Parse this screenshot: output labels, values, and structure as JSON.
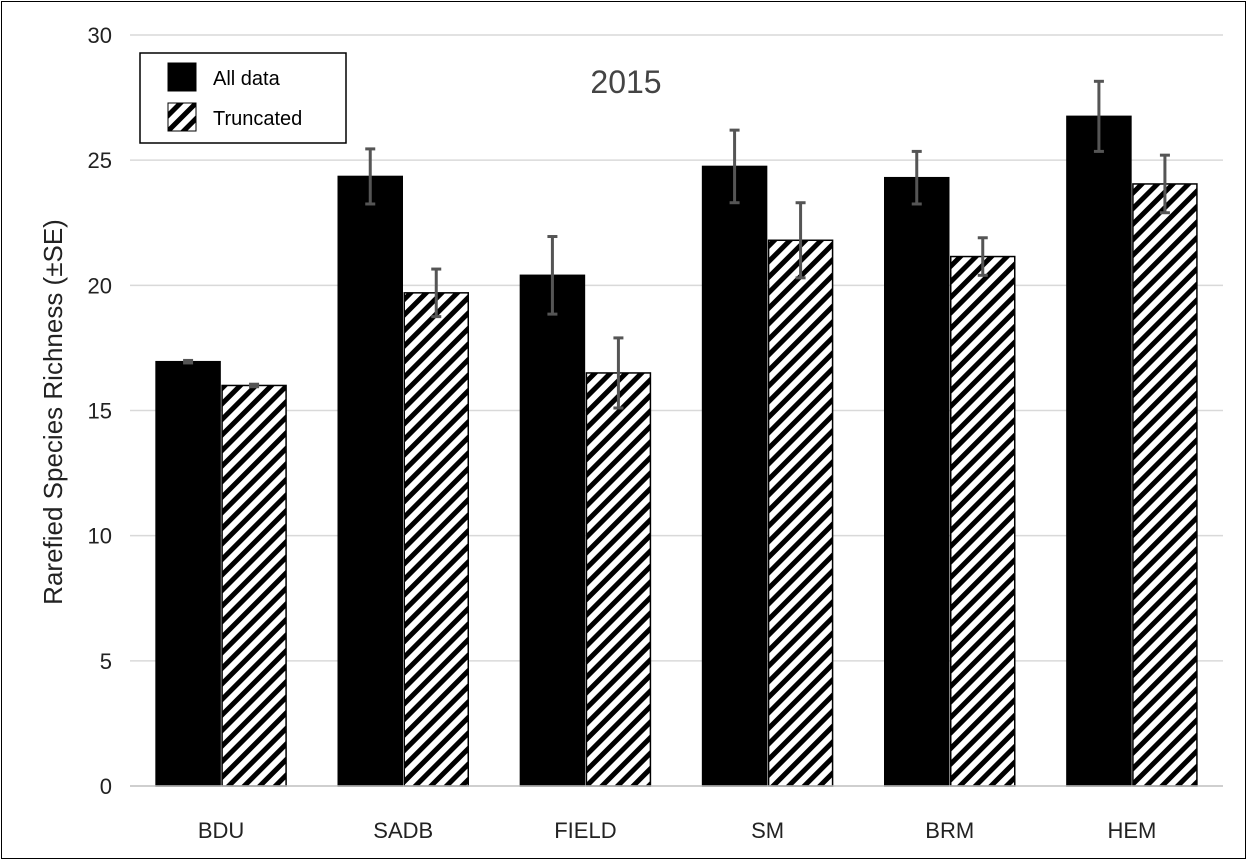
{
  "chart_data": {
    "type": "bar",
    "title": "2015",
    "xlabel": "",
    "ylabel": "Rarefied Species Richness (±SE)",
    "categories": [
      "BDU",
      "SADB",
      "FIELD",
      "SM",
      "BRM",
      "HEM"
    ],
    "series": [
      {
        "name": "All data",
        "fill": "solid",
        "color": "#000000",
        "values": [
          16.95,
          24.35,
          20.4,
          24.75,
          24.3,
          26.75
        ],
        "errors": [
          0.05,
          1.1,
          1.55,
          1.45,
          1.05,
          1.4
        ]
      },
      {
        "name": "Truncated",
        "fill": "hatched",
        "color": "#000000",
        "values": [
          16.0,
          19.7,
          16.5,
          21.8,
          21.15,
          24.05
        ],
        "errors": [
          0.05,
          0.95,
          1.4,
          1.5,
          0.75,
          1.15
        ]
      }
    ],
    "ylim": [
      0,
      30
    ],
    "yticks": [
      0,
      5,
      10,
      15,
      20,
      25,
      30
    ],
    "grid": "horizontal",
    "legend": "top-left",
    "error_bar_color": "#555555"
  }
}
